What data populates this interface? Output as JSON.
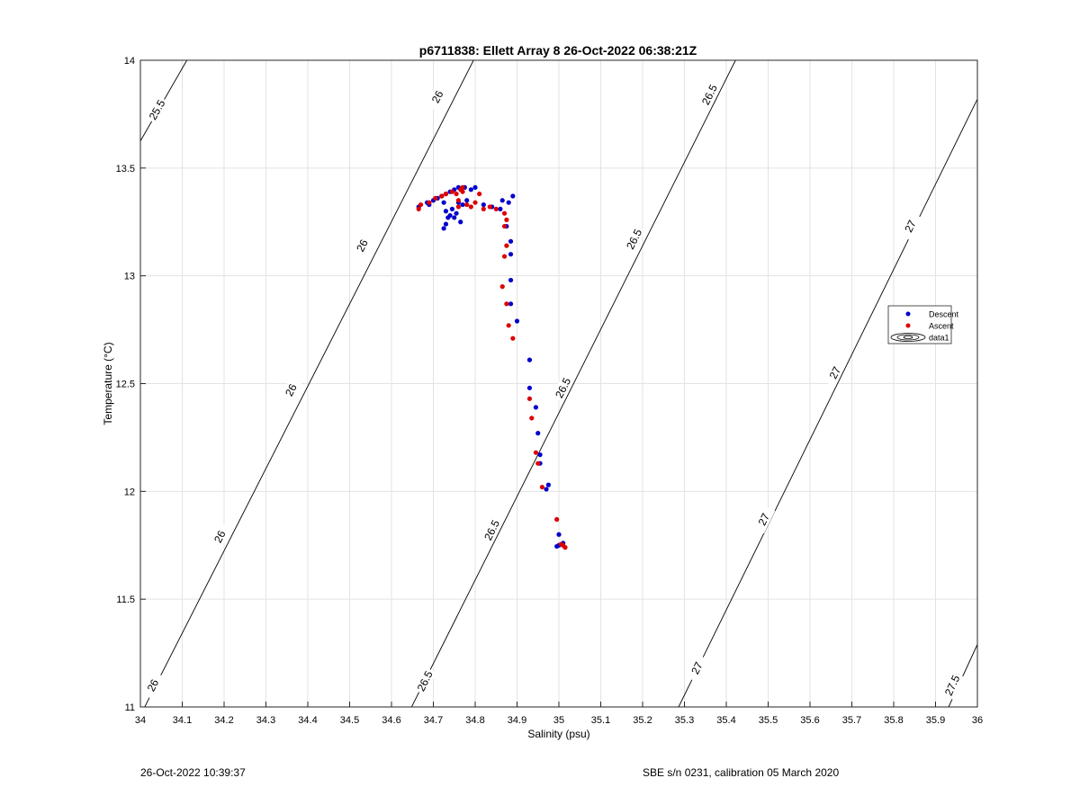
{
  "footer": {
    "timestamp": "26-Oct-2022 10:39:37",
    "instrument": "SBE s/n 0231, calibration 05 March 2020"
  },
  "chart_data": {
    "type": "scatter",
    "title": "p6711838: Ellett Array 8 26-Oct-2022 06:38:21Z",
    "xlabel": "Salinity (psu)",
    "ylabel": "Temperature (°C)",
    "xlim": [
      34,
      36
    ],
    "ylim": [
      11,
      14
    ],
    "x_ticks": [
      "34",
      "34.1",
      "34.2",
      "34.3",
      "34.4",
      "34.5",
      "34.6",
      "34.7",
      "34.8",
      "34.9",
      "35",
      "35.1",
      "35.2",
      "35.3",
      "35.4",
      "35.5",
      "35.6",
      "35.7",
      "35.8",
      "35.9",
      "36"
    ],
    "y_ticks": [
      "11",
      "11.5",
      "12",
      "12.5",
      "13",
      "13.5",
      "14"
    ],
    "grid": true,
    "legend_position": "right",
    "colors": {
      "descent": "#0000cc",
      "ascent": "#dd0000",
      "contour": "#000000",
      "grid": "#e3e3e3"
    },
    "contours": [
      {
        "label": "25.5",
        "line": [
          [
            33.986,
            13.578
          ],
          [
            34.111,
            14.0
          ]
        ],
        "label_positions": [
          [
            34.04,
            13.77
          ]
        ]
      },
      {
        "label": "26",
        "line": [
          [
            34.004,
            10.976
          ],
          [
            34.796,
            14.0
          ]
        ],
        "label_positions": [
          [
            34.03,
            11.1
          ],
          [
            34.19,
            11.79
          ],
          [
            34.36,
            12.47
          ],
          [
            34.53,
            13.14
          ],
          [
            34.71,
            13.83
          ]
        ]
      },
      {
        "label": "26.5",
        "line": [
          [
            34.646,
            10.992
          ],
          [
            35.422,
            14.0
          ]
        ],
        "label_positions": [
          [
            34.68,
            11.12
          ],
          [
            34.84,
            11.82
          ],
          [
            35.01,
            12.48
          ],
          [
            35.18,
            13.17
          ],
          [
            35.36,
            13.84
          ]
        ]
      },
      {
        "label": "27",
        "line": [
          [
            35.285,
            10.996
          ],
          [
            36.0,
            13.82
          ]
        ],
        "label_positions": [
          [
            35.33,
            11.18
          ],
          [
            35.49,
            11.87
          ],
          [
            35.66,
            12.55
          ],
          [
            35.84,
            13.23
          ]
        ]
      },
      {
        "label": "27.5",
        "line": [
          [
            35.926,
            10.978
          ],
          [
            36.0,
            11.29
          ]
        ],
        "label_positions": [
          [
            35.94,
            11.1
          ]
        ]
      }
    ],
    "series": [
      {
        "name": "Descent",
        "points": [
          [
            34.665,
            13.32
          ],
          [
            34.685,
            13.34
          ],
          [
            34.69,
            13.33
          ],
          [
            34.7,
            13.35
          ],
          [
            34.71,
            13.36
          ],
          [
            34.72,
            13.37
          ],
          [
            34.725,
            13.34
          ],
          [
            34.73,
            13.38
          ],
          [
            34.73,
            13.3
          ],
          [
            34.735,
            13.27
          ],
          [
            34.74,
            13.39
          ],
          [
            34.74,
            13.28
          ],
          [
            34.745,
            13.31
          ],
          [
            34.75,
            13.4
          ],
          [
            34.75,
            13.27
          ],
          [
            34.755,
            13.29
          ],
          [
            34.76,
            13.41
          ],
          [
            34.76,
            13.34
          ],
          [
            34.765,
            13.25
          ],
          [
            34.77,
            13.33
          ],
          [
            34.775,
            13.41
          ],
          [
            34.78,
            13.35
          ],
          [
            34.79,
            13.4
          ],
          [
            34.8,
            13.41
          ],
          [
            34.73,
            13.24
          ],
          [
            34.725,
            13.22
          ],
          [
            34.82,
            13.33
          ],
          [
            34.84,
            13.32
          ],
          [
            34.86,
            13.31
          ],
          [
            34.865,
            13.35
          ],
          [
            34.875,
            13.23
          ],
          [
            34.88,
            13.34
          ],
          [
            34.89,
            13.37
          ],
          [
            34.885,
            13.16
          ],
          [
            34.885,
            13.1
          ],
          [
            34.885,
            12.98
          ],
          [
            34.885,
            12.87
          ],
          [
            34.9,
            12.79
          ],
          [
            34.93,
            12.61
          ],
          [
            34.93,
            12.48
          ],
          [
            34.945,
            12.39
          ],
          [
            34.95,
            12.27
          ],
          [
            34.955,
            12.17
          ],
          [
            34.955,
            12.13
          ],
          [
            34.97,
            12.01
          ],
          [
            34.975,
            12.03
          ],
          [
            35.0,
            11.8
          ],
          [
            35.0,
            11.75
          ],
          [
            35.01,
            11.76
          ],
          [
            34.995,
            11.745
          ]
        ]
      },
      {
        "name": "Ascent",
        "points": [
          [
            34.665,
            13.31
          ],
          [
            34.67,
            13.33
          ],
          [
            34.69,
            13.34
          ],
          [
            34.705,
            13.36
          ],
          [
            34.72,
            13.37
          ],
          [
            34.73,
            13.38
          ],
          [
            34.745,
            13.39
          ],
          [
            34.755,
            13.38
          ],
          [
            34.76,
            13.35
          ],
          [
            34.76,
            13.32
          ],
          [
            34.765,
            13.4
          ],
          [
            34.77,
            13.41
          ],
          [
            34.77,
            13.39
          ],
          [
            34.78,
            13.33
          ],
          [
            34.79,
            13.32
          ],
          [
            34.8,
            13.34
          ],
          [
            34.81,
            13.38
          ],
          [
            34.82,
            13.31
          ],
          [
            34.835,
            13.32
          ],
          [
            34.85,
            13.31
          ],
          [
            34.87,
            13.29
          ],
          [
            34.875,
            13.26
          ],
          [
            34.87,
            13.23
          ],
          [
            34.875,
            13.14
          ],
          [
            34.87,
            13.09
          ],
          [
            34.865,
            12.95
          ],
          [
            34.875,
            12.87
          ],
          [
            34.88,
            12.77
          ],
          [
            34.89,
            12.71
          ],
          [
            34.93,
            12.43
          ],
          [
            34.935,
            12.34
          ],
          [
            34.945,
            12.18
          ],
          [
            34.95,
            12.13
          ],
          [
            34.96,
            12.02
          ],
          [
            34.995,
            11.87
          ],
          [
            35.005,
            11.755
          ],
          [
            35.015,
            11.74
          ],
          [
            35.01,
            11.75
          ]
        ]
      },
      {
        "name": "data1",
        "points": []
      }
    ]
  }
}
